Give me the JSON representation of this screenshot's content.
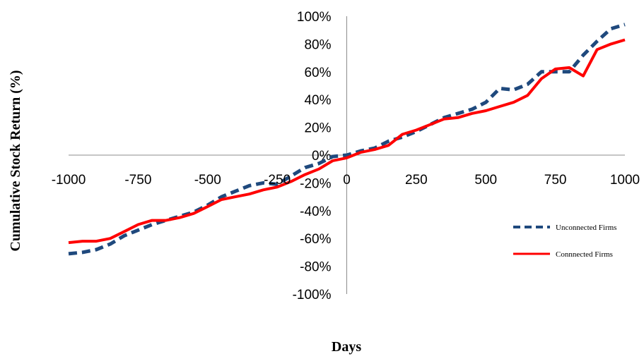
{
  "chart_data": {
    "type": "line",
    "title": "",
    "xlabel": "Days",
    "ylabel": "Cumulative Stock Return (%)",
    "xlim": [
      -1000,
      1000
    ],
    "ylim": [
      -100,
      100
    ],
    "x_ticks": [
      "-1000",
      "-750",
      "-500",
      "-250",
      "0",
      "250",
      "500",
      "750",
      "1000"
    ],
    "x_tick_values": [
      -1000,
      -750,
      -500,
      -250,
      0,
      250,
      500,
      750,
      1000
    ],
    "y_ticks": [
      "100%",
      "80%",
      "60%",
      "40%",
      "20%",
      "0%",
      "-20%",
      "-40%",
      "-60%",
      "-80%",
      "-100%"
    ],
    "y_tick_values": [
      100,
      80,
      60,
      40,
      20,
      0,
      -20,
      -40,
      -60,
      -80,
      -100
    ],
    "grid": false,
    "legend_position": "right",
    "x": [
      -1000,
      -950,
      -900,
      -850,
      -800,
      -750,
      -700,
      -650,
      -600,
      -550,
      -500,
      -450,
      -400,
      -350,
      -300,
      -250,
      -200,
      -150,
      -100,
      -50,
      0,
      50,
      100,
      150,
      200,
      250,
      300,
      350,
      400,
      450,
      500,
      550,
      600,
      650,
      700,
      750,
      800,
      850,
      900,
      950,
      1000
    ],
    "series": [
      {
        "name": "Unconnected Firms",
        "color": "#1F497D",
        "style": "dashed",
        "values": [
          -71,
          -70,
          -68,
          -64,
          -58,
          -54,
          -50,
          -47,
          -44,
          -41,
          -36,
          -30,
          -26,
          -22,
          -20,
          -21,
          -15,
          -9,
          -6,
          -1,
          0,
          3,
          5,
          10,
          13,
          17,
          22,
          27,
          30,
          33,
          38,
          48,
          47,
          51,
          60,
          60,
          60,
          72,
          82,
          91,
          94
        ]
      },
      {
        "name": "Connnected Firms",
        "color": "#FF0000",
        "style": "solid",
        "values": [
          -63,
          -62,
          -62,
          -60,
          -55,
          -50,
          -47,
          -47,
          -45,
          -42,
          -37,
          -32,
          -30,
          -28,
          -25,
          -23,
          -19,
          -14,
          -10,
          -4,
          -2,
          2,
          4,
          7,
          15,
          18,
          22,
          26,
          27,
          30,
          32,
          35,
          38,
          43,
          55,
          62,
          63,
          57,
          76,
          80,
          83
        ]
      }
    ]
  }
}
